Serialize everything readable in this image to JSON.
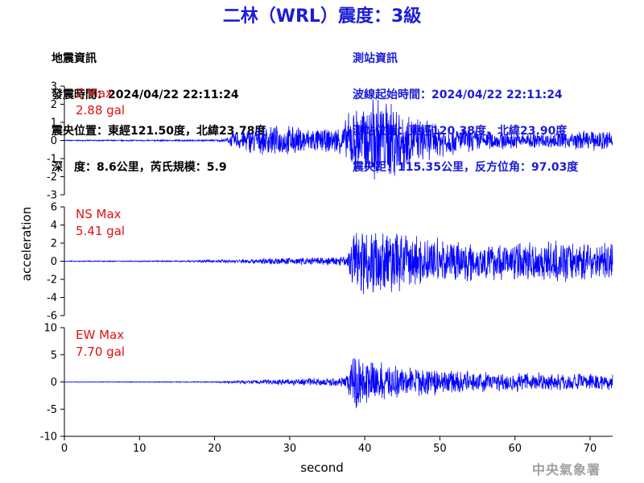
{
  "title": "二林（WRL）震度：3級",
  "earthquake_info": {
    "heading": "地震資訊",
    "origin_time": "發震時間：2024/04/22 22:11:24",
    "epicenter": "震央位置：東經121.50度，北緯23.78度",
    "depth_magnitude": "深　度：8.6公里，芮氏規模：5.9"
  },
  "station_info": {
    "heading": "測站資訊",
    "wave_start": "波線起始時間：2024/04/22 22:11:24",
    "station_location": "測站位置：東經120.38度，北緯23.90度",
    "distance_azimuth": "震央距：115.35公里，反方位角：97.03度"
  },
  "agency": "中央氣象署",
  "colors": {
    "trace": "#0000ff",
    "label": "#e01010",
    "title": "#1c1cd8",
    "axis": "#000000"
  },
  "chart_data": {
    "type": "line",
    "xlabel": "second",
    "ylabel": "acceleration",
    "x_range": [
      0,
      73
    ],
    "x_ticks": [
      0,
      10,
      20,
      30,
      40,
      50,
      60,
      70
    ],
    "grid": false,
    "panels": [
      {
        "name": "Z",
        "label": "Z Max",
        "max_value": "2.88 gal",
        "ylim": [
          -3,
          3
        ],
        "y_ticks": [
          -3,
          -2,
          -1,
          0,
          1,
          2,
          3
        ],
        "envelope": [
          [
            0,
            0.03
          ],
          [
            20,
            0.05
          ],
          [
            21.5,
            0.1
          ],
          [
            22.5,
            0.5
          ],
          [
            25,
            0.8
          ],
          [
            30,
            0.9
          ],
          [
            35,
            0.7
          ],
          [
            37,
            0.9
          ],
          [
            38,
            1.8
          ],
          [
            40,
            2.3
          ],
          [
            42,
            2.6
          ],
          [
            44,
            2.4
          ],
          [
            46,
            1.5
          ],
          [
            50,
            1.0
          ],
          [
            55,
            0.6
          ],
          [
            60,
            0.5
          ],
          [
            65,
            0.45
          ],
          [
            70,
            0.6
          ],
          [
            73,
            0.6
          ]
        ]
      },
      {
        "name": "NS",
        "label": "NS Max",
        "max_value": "5.41 gal",
        "ylim": [
          -6,
          6
        ],
        "y_ticks": [
          -6,
          -4,
          -2,
          0,
          2,
          4,
          6
        ],
        "envelope": [
          [
            0,
            0.05
          ],
          [
            15,
            0.08
          ],
          [
            22,
            0.2
          ],
          [
            28,
            0.4
          ],
          [
            34,
            0.5
          ],
          [
            37.5,
            0.6
          ],
          [
            38.5,
            3.8
          ],
          [
            40,
            4.2
          ],
          [
            42,
            3.8
          ],
          [
            44,
            4.2
          ],
          [
            46,
            3.2
          ],
          [
            50,
            2.8
          ],
          [
            55,
            2.2
          ],
          [
            60,
            2.3
          ],
          [
            65,
            2.4
          ],
          [
            70,
            2.3
          ],
          [
            73,
            2.0
          ]
        ]
      },
      {
        "name": "EW",
        "label": "EW Max",
        "max_value": "7.70 gal",
        "ylim": [
          -10,
          10
        ],
        "y_ticks": [
          -10,
          -5,
          0,
          5,
          10
        ],
        "envelope": [
          [
            0,
            0.05
          ],
          [
            20,
            0.1
          ],
          [
            23,
            0.3
          ],
          [
            30,
            0.6
          ],
          [
            35,
            0.8
          ],
          [
            37.5,
            1.0
          ],
          [
            38.5,
            6.0
          ],
          [
            40,
            4.5
          ],
          [
            42,
            4.0
          ],
          [
            44,
            3.5
          ],
          [
            46,
            3.0
          ],
          [
            50,
            2.5
          ],
          [
            55,
            2.0
          ],
          [
            60,
            2.0
          ],
          [
            65,
            1.8
          ],
          [
            70,
            1.6
          ],
          [
            73,
            1.6
          ]
        ]
      }
    ]
  }
}
